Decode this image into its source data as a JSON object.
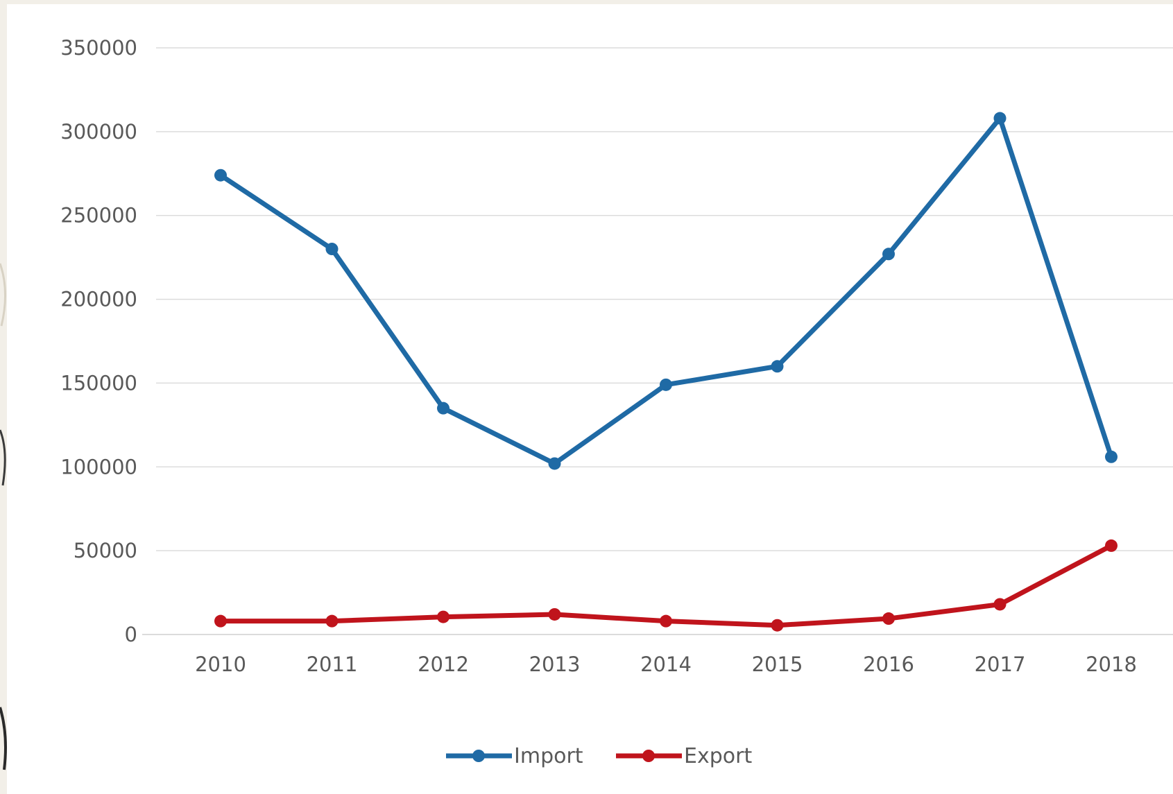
{
  "chart_data": {
    "type": "line",
    "title": "",
    "xlabel": "",
    "ylabel": "",
    "categories": [
      "2010",
      "2011",
      "2012",
      "2013",
      "2014",
      "2015",
      "2016",
      "2017",
      "2018"
    ],
    "ylim": [
      0,
      350000
    ],
    "yticks": [
      0,
      50000,
      100000,
      150000,
      200000,
      250000,
      300000,
      350000
    ],
    "ytick_labels": [
      "0",
      "50000",
      "100000",
      "150000",
      "200000",
      "250000",
      "300000",
      "350000"
    ],
    "grid": true,
    "legend_position": "bottom",
    "series": [
      {
        "name": "Import",
        "color": "#1f6aa5",
        "values": [
          274000,
          230000,
          135000,
          102000,
          149000,
          160000,
          227000,
          308000,
          106000
        ]
      },
      {
        "name": "Export",
        "color": "#c0141c",
        "values": [
          8000,
          8000,
          10500,
          12000,
          8000,
          5500,
          9500,
          18000,
          53000
        ]
      }
    ]
  }
}
